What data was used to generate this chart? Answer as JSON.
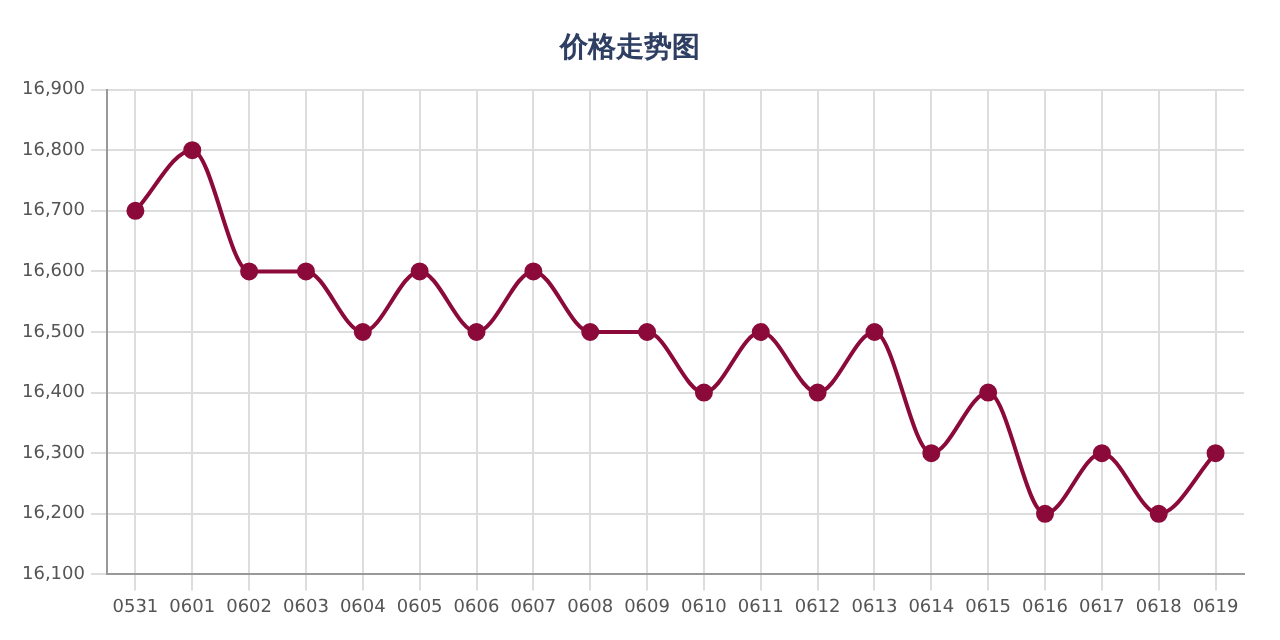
{
  "chart_data": {
    "type": "line",
    "title": "价格走势图",
    "categories": [
      "0531",
      "0601",
      "0602",
      "0603",
      "0604",
      "0605",
      "0606",
      "0607",
      "0608",
      "0609",
      "0610",
      "0611",
      "0612",
      "0613",
      "0614",
      "0615",
      "0616",
      "0617",
      "0618",
      "0619"
    ],
    "series": [
      {
        "color": "#8b0a3a",
        "values": [
          16700,
          16800,
          16600,
          16600,
          16500,
          16600,
          16500,
          16600,
          16500,
          16500,
          16400,
          16500,
          16400,
          16500,
          16300,
          16400,
          16200,
          16300,
          16200,
          16300
        ]
      }
    ],
    "ylim": [
      16100,
      16900
    ],
    "yticks": [
      {
        "value": 16100,
        "label": "16,100"
      },
      {
        "value": 16200,
        "label": "16,200"
      },
      {
        "value": 16300,
        "label": "16,300"
      },
      {
        "value": 16400,
        "label": "16,400"
      },
      {
        "value": 16500,
        "label": "16,500"
      },
      {
        "value": 16600,
        "label": "16,600"
      },
      {
        "value": 16700,
        "label": "16,700"
      },
      {
        "value": 16800,
        "label": "16,800"
      },
      {
        "value": 16900,
        "label": "16,900"
      }
    ],
    "grid": true,
    "marker": "circle",
    "line_style": "solid",
    "legend": false
  }
}
